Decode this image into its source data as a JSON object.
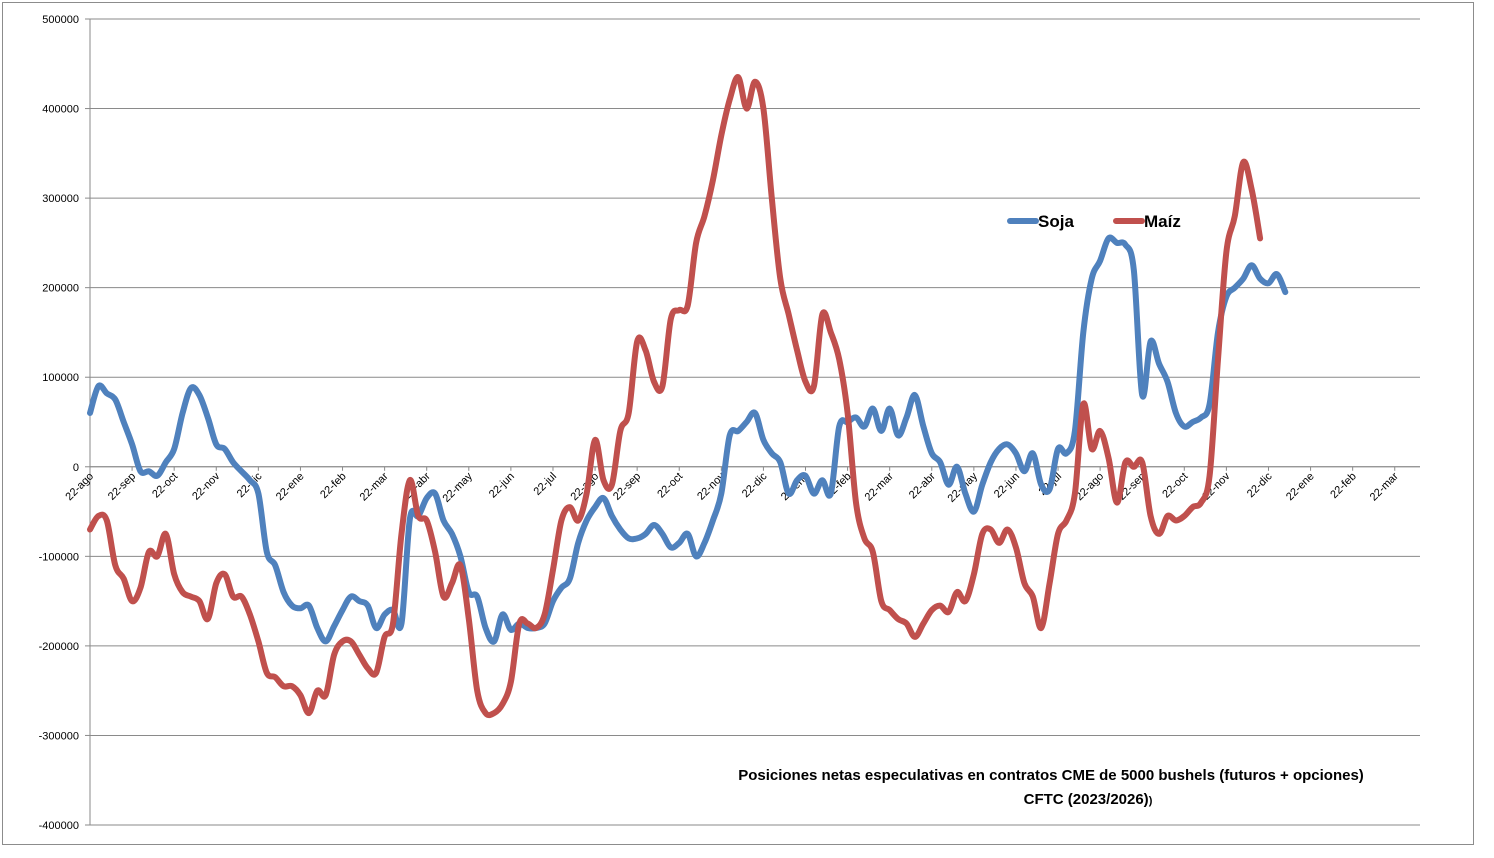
{
  "chart_data": {
    "type": "line",
    "title": "Posiciones netas especulativas en contratos CME de 5000 bushels (futuros + opciones)",
    "subtitle": "CFTC (2023/2026)",
    "subtitle_suffix": ")",
    "xlabel": "",
    "ylabel": "",
    "ylim": [
      -400000,
      500000
    ],
    "yticks": [
      500000,
      400000,
      300000,
      200000,
      100000,
      0,
      -100000,
      -200000,
      -300000,
      -400000
    ],
    "ytick_labels": [
      "500000",
      "400000",
      "300000",
      "200000",
      "100000",
      "0",
      "-100000",
      "-200000",
      "-300000",
      "-400000"
    ],
    "grid": true,
    "legend_position": "top-right",
    "x_count": 159,
    "x_tick_indices": [
      0,
      5,
      10,
      15,
      20,
      25,
      30,
      35,
      40,
      45,
      50,
      55,
      60,
      65,
      70,
      75,
      80,
      85,
      90,
      95,
      100,
      105,
      110,
      115,
      120,
      125,
      130,
      135,
      140,
      145,
      150,
      155
    ],
    "x_tick_labels": [
      "22-ago",
      "22-sep",
      "22-oct",
      "22-nov",
      "22-dic",
      "22-ene",
      "22-feb",
      "22-mar",
      "22-abr",
      "22-may",
      "22-jun",
      "22-jul",
      "22-ago",
      "22-sep",
      "22-oct",
      "22-nov",
      "22-dic",
      "22-ene",
      "22-feb",
      "22-mar",
      "22-abr",
      "22-may",
      "22-jun",
      "22-jul",
      "22-ago",
      "22-sep",
      "22-oct",
      "22-nov",
      "22-dic",
      "22-ene",
      "22-feb",
      "22-mar"
    ],
    "series": [
      {
        "name": "Soja",
        "color": "#4f81bd",
        "points": [
          [
            0,
            60000
          ],
          [
            1,
            90000
          ],
          [
            2,
            82000
          ],
          [
            3,
            75000
          ],
          [
            4,
            50000
          ],
          [
            5,
            25000
          ],
          [
            6,
            -5000
          ],
          [
            7,
            -5000
          ],
          [
            8,
            -10000
          ],
          [
            9,
            5000
          ],
          [
            10,
            20000
          ],
          [
            11,
            60000
          ],
          [
            12,
            88000
          ],
          [
            13,
            80000
          ],
          [
            14,
            55000
          ],
          [
            15,
            25000
          ],
          [
            16,
            20000
          ],
          [
            17,
            5000
          ],
          [
            18,
            -5000
          ],
          [
            19,
            -15000
          ],
          [
            20,
            -30000
          ],
          [
            21,
            -95000
          ],
          [
            22,
            -110000
          ],
          [
            23,
            -140000
          ],
          [
            24,
            -155000
          ],
          [
            25,
            -158000
          ],
          [
            26,
            -155000
          ],
          [
            27,
            -180000
          ],
          [
            28,
            -195000
          ],
          [
            29,
            -178000
          ],
          [
            30,
            -160000
          ],
          [
            31,
            -145000
          ],
          [
            32,
            -150000
          ],
          [
            33,
            -155000
          ],
          [
            34,
            -180000
          ],
          [
            35,
            -165000
          ],
          [
            36,
            -160000
          ],
          [
            37,
            -175000
          ],
          [
            38,
            -58000
          ],
          [
            39,
            -55000
          ],
          [
            40,
            -35000
          ],
          [
            41,
            -30000
          ],
          [
            42,
            -60000
          ],
          [
            43,
            -75000
          ],
          [
            44,
            -100000
          ],
          [
            45,
            -140000
          ],
          [
            46,
            -145000
          ],
          [
            47,
            -180000
          ],
          [
            48,
            -195000
          ],
          [
            49,
            -165000
          ],
          [
            50,
            -182000
          ],
          [
            51,
            -175000
          ],
          [
            52,
            -180000
          ],
          [
            53,
            -180000
          ],
          [
            54,
            -175000
          ],
          [
            55,
            -150000
          ],
          [
            56,
            -135000
          ],
          [
            57,
            -125000
          ],
          [
            58,
            -85000
          ],
          [
            59,
            -60000
          ],
          [
            60,
            -45000
          ],
          [
            61,
            -35000
          ],
          [
            62,
            -55000
          ],
          [
            63,
            -70000
          ],
          [
            64,
            -80000
          ],
          [
            65,
            -80000
          ],
          [
            66,
            -75000
          ],
          [
            67,
            -65000
          ],
          [
            68,
            -75000
          ],
          [
            69,
            -90000
          ],
          [
            70,
            -85000
          ],
          [
            71,
            -75000
          ],
          [
            72,
            -100000
          ],
          [
            73,
            -85000
          ],
          [
            74,
            -60000
          ],
          [
            75,
            -30000
          ],
          [
            76,
            35000
          ],
          [
            77,
            40000
          ],
          [
            78,
            50000
          ],
          [
            79,
            60000
          ],
          [
            80,
            30000
          ],
          [
            81,
            15000
          ],
          [
            82,
            5000
          ],
          [
            83,
            -30000
          ],
          [
            84,
            -15000
          ],
          [
            85,
            -10000
          ],
          [
            86,
            -30000
          ],
          [
            87,
            -15000
          ],
          [
            88,
            -30000
          ],
          [
            89,
            45000
          ],
          [
            90,
            50000
          ],
          [
            91,
            55000
          ],
          [
            92,
            45000
          ],
          [
            93,
            65000
          ],
          [
            94,
            40000
          ],
          [
            95,
            65000
          ],
          [
            96,
            35000
          ],
          [
            97,
            55000
          ],
          [
            98,
            80000
          ],
          [
            99,
            45000
          ],
          [
            100,
            15000
          ],
          [
            101,
            5000
          ],
          [
            102,
            -20000
          ],
          [
            103,
            0
          ],
          [
            104,
            -30000
          ],
          [
            105,
            -50000
          ],
          [
            106,
            -20000
          ],
          [
            107,
            5000
          ],
          [
            108,
            20000
          ],
          [
            109,
            25000
          ],
          [
            110,
            15000
          ],
          [
            111,
            -5000
          ],
          [
            112,
            15000
          ],
          [
            113,
            -20000
          ],
          [
            114,
            -25000
          ],
          [
            115,
            20000
          ],
          [
            116,
            15000
          ],
          [
            117,
            40000
          ],
          [
            118,
            150000
          ],
          [
            119,
            210000
          ],
          [
            120,
            230000
          ],
          [
            121,
            255000
          ],
          [
            122,
            250000
          ],
          [
            123,
            248000
          ],
          [
            124,
            220000
          ],
          [
            125,
            80000
          ],
          [
            126,
            140000
          ],
          [
            127,
            115000
          ],
          [
            128,
            95000
          ],
          [
            129,
            60000
          ],
          [
            130,
            45000
          ],
          [
            131,
            50000
          ],
          [
            132,
            55000
          ],
          [
            133,
            70000
          ],
          [
            134,
            150000
          ],
          [
            135,
            190000
          ],
          [
            136,
            200000
          ],
          [
            137,
            210000
          ],
          [
            138,
            225000
          ],
          [
            139,
            210000
          ],
          [
            140,
            205000
          ],
          [
            141,
            215000
          ],
          [
            142,
            195000
          ]
        ]
      },
      {
        "name": "Maíz",
        "color": "#c0504d",
        "points": [
          [
            0,
            -70000
          ],
          [
            1,
            -55000
          ],
          [
            2,
            -60000
          ],
          [
            3,
            -110000
          ],
          [
            4,
            -125000
          ],
          [
            5,
            -150000
          ],
          [
            6,
            -135000
          ],
          [
            7,
            -95000
          ],
          [
            8,
            -100000
          ],
          [
            9,
            -75000
          ],
          [
            10,
            -120000
          ],
          [
            11,
            -140000
          ],
          [
            12,
            -145000
          ],
          [
            13,
            -150000
          ],
          [
            14,
            -170000
          ],
          [
            15,
            -130000
          ],
          [
            16,
            -120000
          ],
          [
            17,
            -145000
          ],
          [
            18,
            -145000
          ],
          [
            19,
            -165000
          ],
          [
            20,
            -195000
          ],
          [
            21,
            -230000
          ],
          [
            22,
            -235000
          ],
          [
            23,
            -245000
          ],
          [
            24,
            -245000
          ],
          [
            25,
            -255000
          ],
          [
            26,
            -275000
          ],
          [
            27,
            -250000
          ],
          [
            28,
            -255000
          ],
          [
            29,
            -210000
          ],
          [
            30,
            -195000
          ],
          [
            31,
            -195000
          ],
          [
            32,
            -210000
          ],
          [
            33,
            -225000
          ],
          [
            34,
            -230000
          ],
          [
            35,
            -190000
          ],
          [
            36,
            -175000
          ],
          [
            37,
            -75000
          ],
          [
            38,
            -15000
          ],
          [
            39,
            -55000
          ],
          [
            40,
            -60000
          ],
          [
            41,
            -95000
          ],
          [
            42,
            -145000
          ],
          [
            43,
            -130000
          ],
          [
            44,
            -110000
          ],
          [
            45,
            -170000
          ],
          [
            46,
            -250000
          ],
          [
            47,
            -275000
          ],
          [
            48,
            -275000
          ],
          [
            49,
            -265000
          ],
          [
            50,
            -240000
          ],
          [
            51,
            -175000
          ],
          [
            52,
            -175000
          ],
          [
            53,
            -180000
          ],
          [
            54,
            -165000
          ],
          [
            55,
            -115000
          ],
          [
            56,
            -60000
          ],
          [
            57,
            -45000
          ],
          [
            58,
            -60000
          ],
          [
            59,
            -30000
          ],
          [
            60,
            30000
          ],
          [
            61,
            -15000
          ],
          [
            62,
            -20000
          ],
          [
            63,
            40000
          ],
          [
            64,
            60000
          ],
          [
            65,
            140000
          ],
          [
            66,
            130000
          ],
          [
            67,
            95000
          ],
          [
            68,
            90000
          ],
          [
            69,
            165000
          ],
          [
            70,
            175000
          ],
          [
            71,
            180000
          ],
          [
            72,
            250000
          ],
          [
            73,
            280000
          ],
          [
            74,
            320000
          ],
          [
            75,
            370000
          ],
          [
            76,
            410000
          ],
          [
            77,
            435000
          ],
          [
            78,
            400000
          ],
          [
            79,
            430000
          ],
          [
            80,
            400000
          ],
          [
            81,
            300000
          ],
          [
            82,
            210000
          ],
          [
            83,
            170000
          ],
          [
            84,
            130000
          ],
          [
            85,
            95000
          ],
          [
            86,
            90000
          ],
          [
            87,
            170000
          ],
          [
            88,
            150000
          ],
          [
            89,
            120000
          ],
          [
            90,
            60000
          ],
          [
            91,
            -40000
          ],
          [
            92,
            -80000
          ],
          [
            93,
            -95000
          ],
          [
            94,
            -150000
          ],
          [
            95,
            -160000
          ],
          [
            96,
            -170000
          ],
          [
            97,
            -175000
          ],
          [
            98,
            -190000
          ],
          [
            99,
            -175000
          ],
          [
            100,
            -160000
          ],
          [
            101,
            -155000
          ],
          [
            102,
            -162000
          ],
          [
            103,
            -140000
          ],
          [
            104,
            -150000
          ],
          [
            105,
            -120000
          ],
          [
            106,
            -75000
          ],
          [
            107,
            -70000
          ],
          [
            108,
            -85000
          ],
          [
            109,
            -70000
          ],
          [
            110,
            -90000
          ],
          [
            111,
            -130000
          ],
          [
            112,
            -145000
          ],
          [
            113,
            -180000
          ],
          [
            114,
            -130000
          ],
          [
            115,
            -75000
          ],
          [
            116,
            -60000
          ],
          [
            117,
            -30000
          ],
          [
            118,
            70000
          ],
          [
            119,
            20000
          ],
          [
            120,
            40000
          ],
          [
            121,
            10000
          ],
          [
            122,
            -40000
          ],
          [
            123,
            5000
          ],
          [
            124,
            0
          ],
          [
            125,
            5000
          ],
          [
            126,
            -55000
          ],
          [
            127,
            -75000
          ],
          [
            128,
            -55000
          ],
          [
            129,
            -60000
          ],
          [
            130,
            -55000
          ],
          [
            131,
            -45000
          ],
          [
            132,
            -40000
          ],
          [
            133,
            -10000
          ],
          [
            134,
            120000
          ],
          [
            135,
            240000
          ],
          [
            136,
            280000
          ],
          [
            137,
            340000
          ],
          [
            138,
            310000
          ],
          [
            139,
            255000
          ]
        ]
      }
    ]
  }
}
